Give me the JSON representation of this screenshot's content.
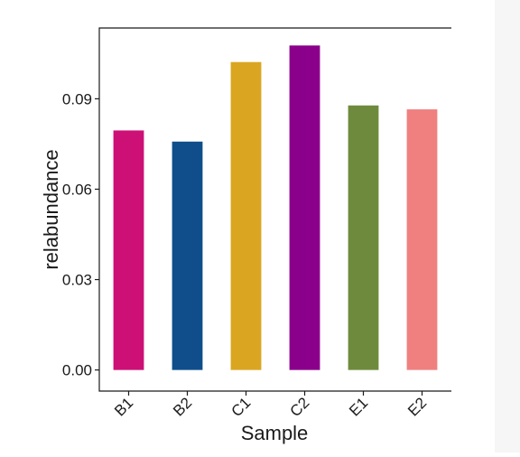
{
  "chart_data": {
    "type": "bar",
    "title": "",
    "xlabel": "Sample",
    "ylabel": "relabundance",
    "categories": [
      "B1",
      "B2",
      "C1",
      "C2",
      "E1",
      "E2"
    ],
    "values": [
      0.0795,
      0.0758,
      0.1022,
      0.1077,
      0.0878,
      0.0865
    ],
    "colors": [
      "#cd1076",
      "#104e8b",
      "#daa520",
      "#8b008b",
      "#6e8b3d",
      "#f08080"
    ],
    "ylim": [
      -0.007,
      0.1135
    ],
    "yticks": [
      0.0,
      0.03,
      0.06,
      0.09
    ],
    "ytick_labels": [
      "0.00",
      "0.03",
      "0.06",
      "0.09"
    ],
    "grid": false,
    "legend": "none"
  }
}
